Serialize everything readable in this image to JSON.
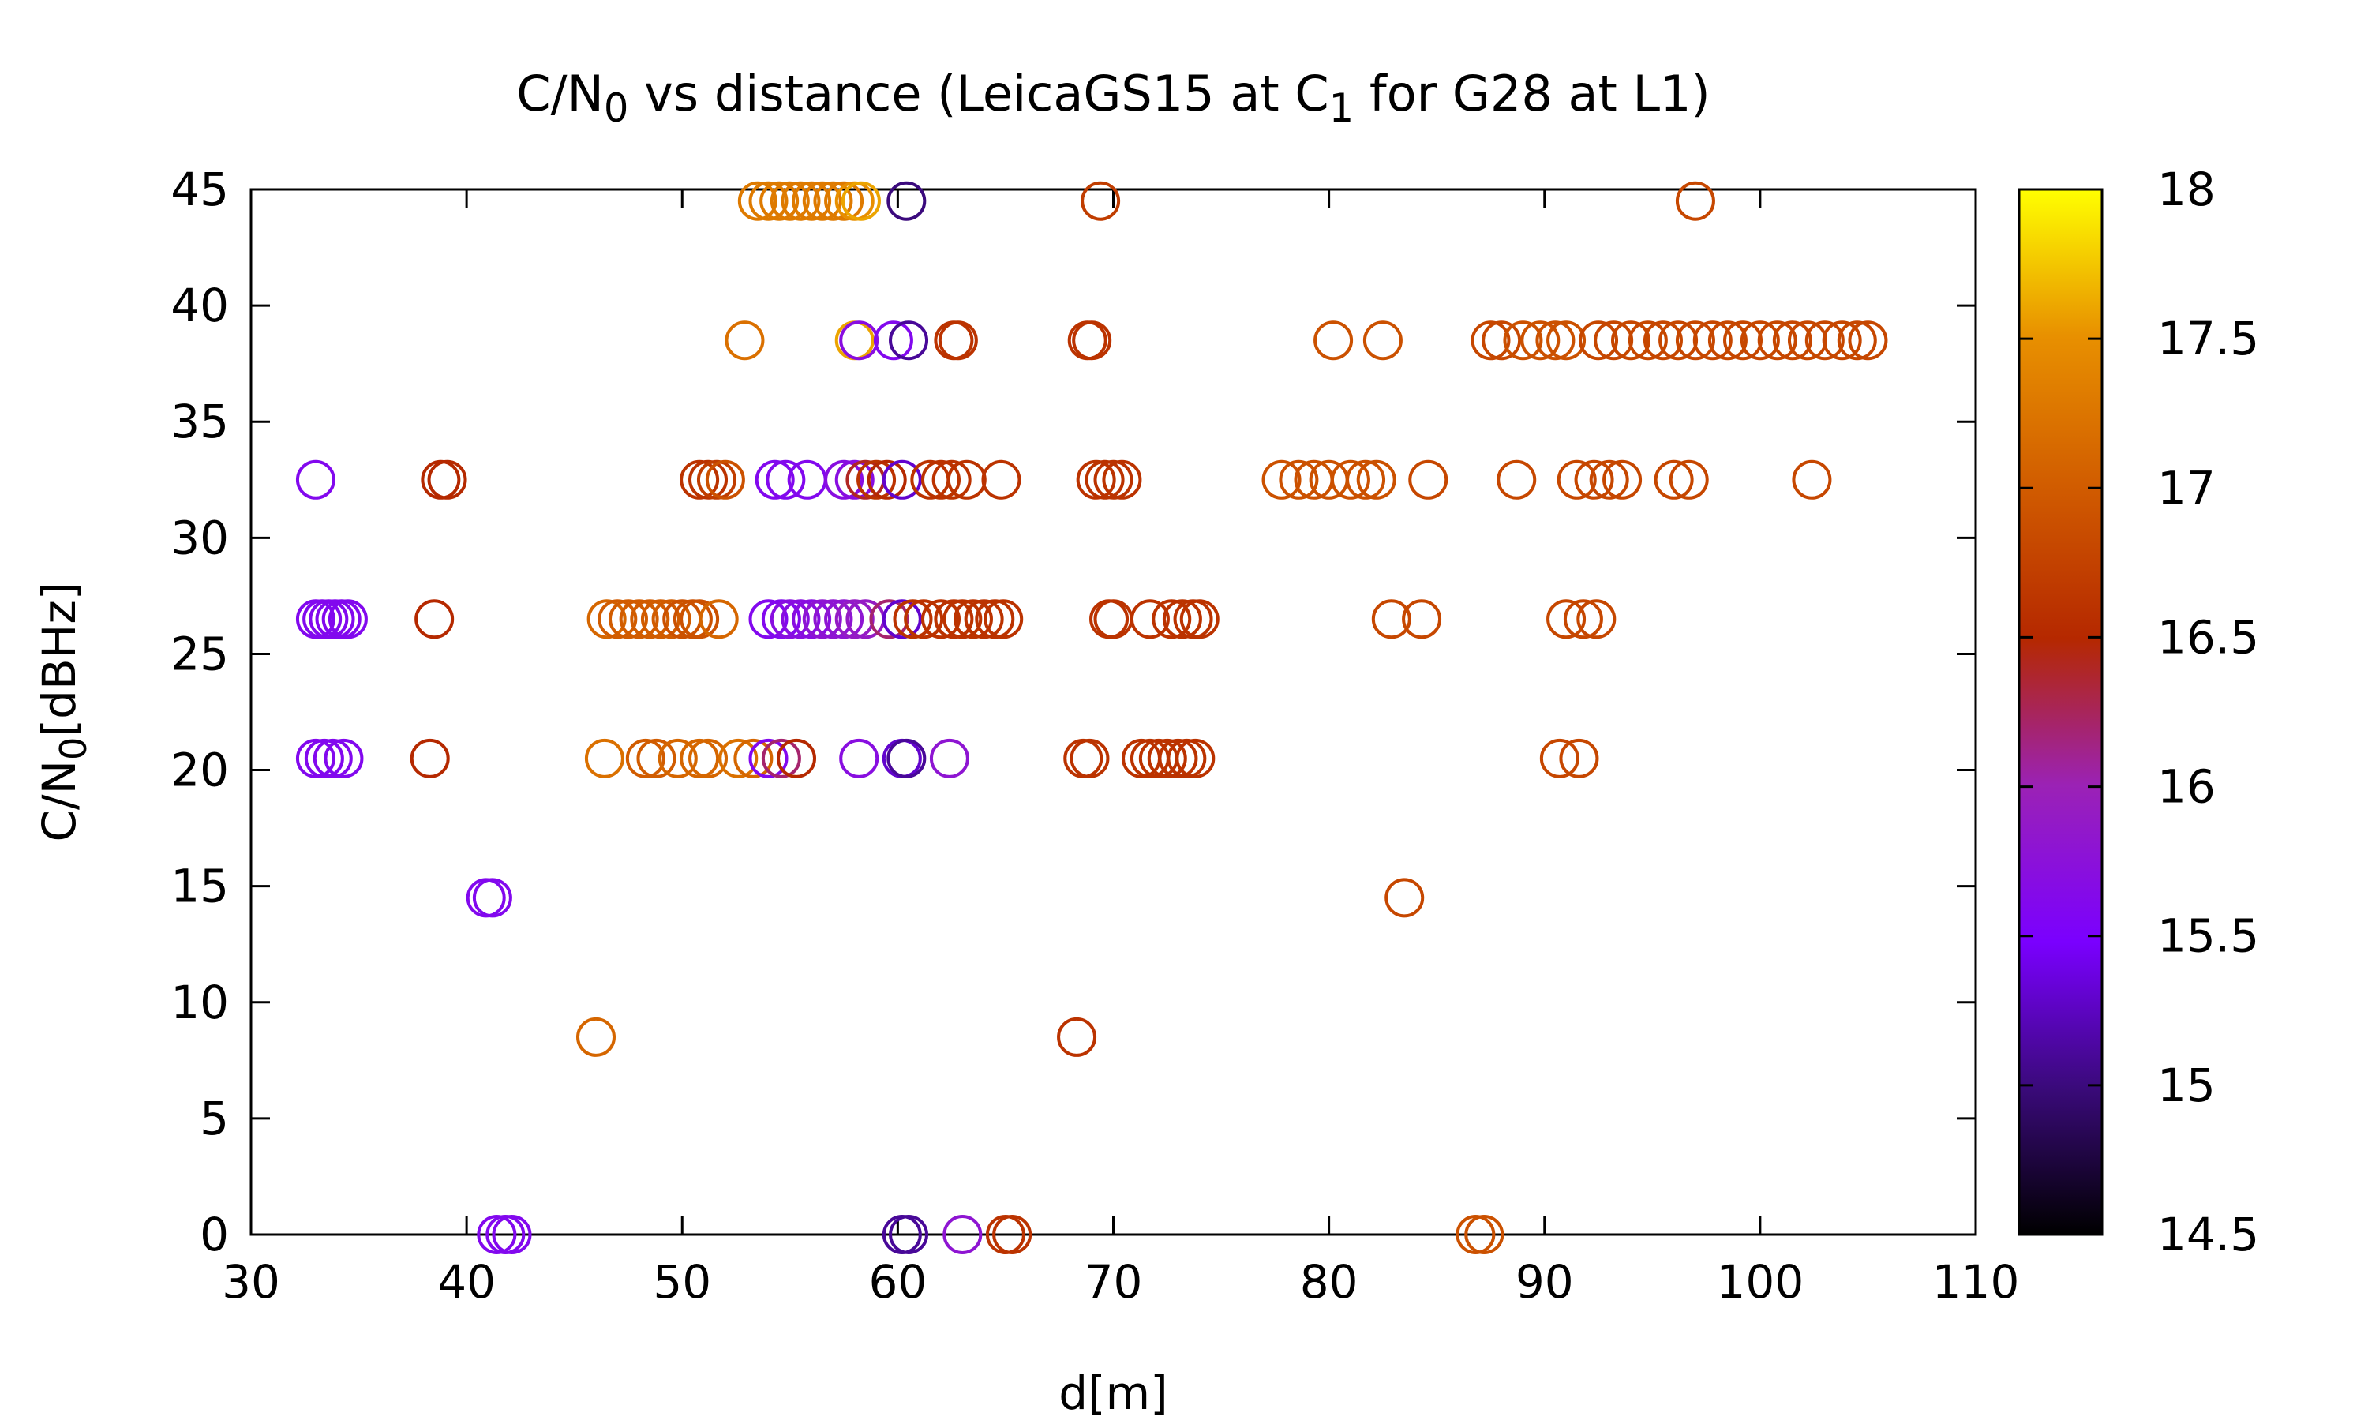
{
  "chart_data": {
    "type": "scatter",
    "title_parts": [
      {
        "t": "C/N"
      },
      {
        "t": "0",
        "sub": true
      },
      {
        "t": " vs distance (LeicaGS15 at C"
      },
      {
        "t": "1",
        "sub": true
      },
      {
        "t": " for G28 at L1)"
      }
    ],
    "title": "C/N0 vs distance (LeicaGS15 at C1 for G28 at L1)",
    "xlabel": "d[m]",
    "ylabel_parts": [
      {
        "t": "C/N"
      },
      {
        "t": "0",
        "sub": true
      },
      {
        "t": "[dBHz]"
      }
    ],
    "ylabel": "C/N0[dBHz]",
    "xlim": [
      30,
      110
    ],
    "ylim": [
      0,
      45
    ],
    "xticks": [
      "30",
      "40",
      "50",
      "60",
      "70",
      "80",
      "90",
      "100",
      "110"
    ],
    "yticks": [
      "0",
      "5",
      "10",
      "15",
      "20",
      "25",
      "30",
      "35",
      "40",
      "45"
    ],
    "color_range": [
      14.5,
      18
    ],
    "colorbar_ticks": [
      "14.5",
      "15",
      "15.5",
      "16",
      "16.5",
      "17",
      "17.5",
      "18"
    ],
    "colormap": "gnuplot (black-purple-red-orange-yellow)",
    "marker": "open-circle",
    "grid": false,
    "points": [
      [
        53.5,
        44.5,
        17.3
      ],
      [
        54.0,
        44.5,
        17.3
      ],
      [
        54.5,
        44.5,
        17.3
      ],
      [
        55.0,
        44.5,
        17.3
      ],
      [
        55.5,
        44.5,
        17.3
      ],
      [
        56.0,
        44.5,
        17.3
      ],
      [
        56.5,
        44.5,
        17.3
      ],
      [
        57.0,
        44.5,
        17.3
      ],
      [
        57.5,
        44.5,
        17.3
      ],
      [
        58.0,
        44.5,
        17.5
      ],
      [
        58.3,
        44.5,
        17.6
      ],
      [
        60.4,
        44.5,
        15.0
      ],
      [
        69.4,
        44.5,
        16.7
      ],
      [
        97.0,
        44.5,
        16.8
      ],
      [
        52.9,
        38.5,
        17.2
      ],
      [
        58.0,
        38.5,
        17.6
      ],
      [
        58.2,
        38.5,
        15.7
      ],
      [
        59.8,
        38.5,
        15.6
      ],
      [
        60.5,
        38.5,
        15.1
      ],
      [
        62.6,
        38.5,
        16.6
      ],
      [
        62.8,
        38.5,
        16.6
      ],
      [
        68.8,
        38.5,
        16.6
      ],
      [
        69.0,
        38.5,
        16.6
      ],
      [
        80.2,
        38.5,
        16.9
      ],
      [
        82.5,
        38.5,
        16.9
      ],
      [
        87.5,
        38.5,
        16.8
      ],
      [
        88.0,
        38.5,
        16.8
      ],
      [
        89.0,
        38.5,
        16.9
      ],
      [
        89.8,
        38.5,
        16.9
      ],
      [
        90.5,
        38.5,
        16.9
      ],
      [
        91.0,
        38.5,
        16.9
      ],
      [
        92.5,
        38.5,
        16.8
      ],
      [
        93.2,
        38.5,
        16.8
      ],
      [
        94.0,
        38.5,
        16.8
      ],
      [
        94.8,
        38.5,
        16.8
      ],
      [
        95.5,
        38.5,
        16.8
      ],
      [
        96.2,
        38.5,
        16.8
      ],
      [
        97.0,
        38.5,
        16.8
      ],
      [
        97.8,
        38.5,
        16.8
      ],
      [
        98.5,
        38.5,
        16.8
      ],
      [
        99.2,
        38.5,
        16.8
      ],
      [
        100.0,
        38.5,
        16.8
      ],
      [
        100.8,
        38.5,
        16.8
      ],
      [
        101.5,
        38.5,
        16.8
      ],
      [
        102.2,
        38.5,
        16.8
      ],
      [
        103.0,
        38.5,
        16.8
      ],
      [
        103.8,
        38.5,
        16.8
      ],
      [
        104.5,
        38.5,
        16.8
      ],
      [
        105.0,
        38.5,
        16.8
      ],
      [
        33.0,
        32.5,
        15.6
      ],
      [
        38.8,
        32.5,
        16.5
      ],
      [
        39.1,
        32.5,
        16.5
      ],
      [
        50.8,
        32.5,
        16.6
      ],
      [
        51.2,
        32.5,
        16.6
      ],
      [
        51.6,
        32.5,
        16.7
      ],
      [
        52.0,
        32.5,
        16.9
      ],
      [
        54.3,
        32.5,
        15.6
      ],
      [
        54.8,
        32.5,
        15.6
      ],
      [
        55.8,
        32.5,
        15.6
      ],
      [
        57.5,
        32.5,
        15.7
      ],
      [
        58.0,
        32.5,
        15.7
      ],
      [
        58.5,
        32.5,
        16.4
      ],
      [
        59.0,
        32.5,
        16.6
      ],
      [
        59.5,
        32.5,
        16.5
      ],
      [
        60.2,
        32.5,
        15.3
      ],
      [
        61.5,
        32.5,
        16.6
      ],
      [
        62.0,
        32.5,
        16.6
      ],
      [
        62.5,
        32.5,
        16.6
      ],
      [
        63.2,
        32.5,
        16.6
      ],
      [
        64.8,
        32.5,
        16.6
      ],
      [
        69.2,
        32.5,
        16.6
      ],
      [
        69.6,
        32.5,
        16.6
      ],
      [
        70.0,
        32.5,
        16.6
      ],
      [
        70.4,
        32.5,
        16.6
      ],
      [
        77.8,
        32.5,
        16.9
      ],
      [
        78.6,
        32.5,
        16.9
      ],
      [
        79.3,
        32.5,
        16.9
      ],
      [
        80.0,
        32.5,
        16.9
      ],
      [
        81.0,
        32.5,
        16.9
      ],
      [
        81.7,
        32.5,
        16.9
      ],
      [
        82.2,
        32.5,
        16.9
      ],
      [
        84.6,
        32.5,
        16.8
      ],
      [
        88.7,
        32.5,
        16.8
      ],
      [
        91.5,
        32.5,
        16.8
      ],
      [
        92.3,
        32.5,
        16.8
      ],
      [
        93.0,
        32.5,
        16.8
      ],
      [
        93.6,
        32.5,
        16.8
      ],
      [
        96.0,
        32.5,
        16.8
      ],
      [
        96.7,
        32.5,
        16.8
      ],
      [
        102.4,
        32.5,
        16.8
      ],
      [
        33.0,
        26.5,
        15.6
      ],
      [
        33.3,
        26.5,
        15.6
      ],
      [
        33.6,
        26.5,
        15.6
      ],
      [
        33.9,
        26.5,
        15.6
      ],
      [
        34.2,
        26.5,
        15.6
      ],
      [
        34.5,
        26.5,
        15.6
      ],
      [
        38.5,
        26.5,
        16.5
      ],
      [
        46.5,
        26.5,
        17.1
      ],
      [
        47.0,
        26.5,
        17.0
      ],
      [
        47.5,
        26.5,
        17.0
      ],
      [
        48.0,
        26.5,
        17.0
      ],
      [
        48.5,
        26.5,
        17.0
      ],
      [
        49.0,
        26.5,
        17.0
      ],
      [
        49.5,
        26.5,
        17.0
      ],
      [
        50.0,
        26.5,
        16.9
      ],
      [
        50.5,
        26.5,
        16.9
      ],
      [
        50.8,
        26.5,
        16.9
      ],
      [
        51.7,
        26.5,
        17.1
      ],
      [
        54.0,
        26.5,
        15.6
      ],
      [
        54.6,
        26.5,
        15.6
      ],
      [
        55.0,
        26.5,
        15.7
      ],
      [
        55.5,
        26.5,
        15.7
      ],
      [
        56.0,
        26.5,
        15.7
      ],
      [
        56.5,
        26.5,
        15.8
      ],
      [
        57.0,
        26.5,
        15.8
      ],
      [
        57.5,
        26.5,
        15.8
      ],
      [
        58.0,
        26.5,
        15.9
      ],
      [
        58.5,
        26.5,
        15.9
      ],
      [
        59.6,
        26.5,
        16.2
      ],
      [
        60.2,
        26.5,
        15.3
      ],
      [
        60.7,
        26.5,
        16.6
      ],
      [
        61.2,
        26.5,
        16.6
      ],
      [
        62.0,
        26.5,
        16.6
      ],
      [
        62.6,
        26.5,
        16.6
      ],
      [
        63.0,
        26.5,
        16.6
      ],
      [
        63.5,
        26.5,
        16.6
      ],
      [
        64.0,
        26.5,
        16.6
      ],
      [
        64.5,
        26.5,
        16.6
      ],
      [
        64.9,
        26.5,
        16.6
      ],
      [
        69.8,
        26.5,
        16.6
      ],
      [
        70.0,
        26.5,
        16.6
      ],
      [
        71.7,
        26.5,
        16.6
      ],
      [
        72.7,
        26.5,
        16.6
      ],
      [
        73.2,
        26.5,
        16.6
      ],
      [
        73.7,
        26.5,
        16.6
      ],
      [
        74.0,
        26.5,
        16.6
      ],
      [
        82.9,
        26.5,
        16.8
      ],
      [
        84.3,
        26.5,
        16.8
      ],
      [
        91.0,
        26.5,
        16.8
      ],
      [
        91.8,
        26.5,
        16.8
      ],
      [
        92.4,
        26.5,
        16.8
      ],
      [
        33.0,
        20.5,
        15.6
      ],
      [
        33.4,
        20.5,
        15.6
      ],
      [
        33.8,
        20.5,
        15.6
      ],
      [
        34.3,
        20.5,
        15.6
      ],
      [
        38.3,
        20.5,
        16.5
      ],
      [
        46.4,
        20.5,
        17.2
      ],
      [
        48.3,
        20.5,
        17.0
      ],
      [
        48.8,
        20.5,
        17.0
      ],
      [
        49.8,
        20.5,
        17.1
      ],
      [
        50.8,
        20.5,
        17.1
      ],
      [
        51.2,
        20.5,
        17.1
      ],
      [
        52.6,
        20.5,
        17.2
      ],
      [
        53.3,
        20.5,
        17.1
      ],
      [
        54.0,
        20.5,
        15.6
      ],
      [
        54.6,
        20.5,
        16.2
      ],
      [
        55.3,
        20.5,
        16.5
      ],
      [
        58.2,
        20.5,
        15.7
      ],
      [
        60.2,
        20.5,
        15.3
      ],
      [
        60.4,
        20.5,
        15.1
      ],
      [
        62.4,
        20.5,
        15.8
      ],
      [
        68.6,
        20.5,
        16.6
      ],
      [
        68.9,
        20.5,
        16.6
      ],
      [
        71.3,
        20.5,
        16.6
      ],
      [
        71.7,
        20.5,
        16.6
      ],
      [
        72.1,
        20.5,
        16.6
      ],
      [
        72.5,
        20.5,
        16.6
      ],
      [
        73.0,
        20.5,
        16.6
      ],
      [
        73.4,
        20.5,
        16.6
      ],
      [
        73.8,
        20.5,
        16.6
      ],
      [
        90.7,
        20.5,
        16.8
      ],
      [
        91.6,
        20.5,
        16.8
      ],
      [
        40.9,
        14.5,
        15.6
      ],
      [
        41.2,
        14.5,
        15.6
      ],
      [
        83.5,
        14.5,
        16.8
      ],
      [
        46.0,
        8.5,
        17.1
      ],
      [
        68.3,
        8.5,
        16.6
      ],
      [
        41.4,
        0.0,
        15.6
      ],
      [
        41.8,
        0.0,
        15.6
      ],
      [
        42.1,
        0.0,
        15.6
      ],
      [
        60.2,
        0.0,
        15.1
      ],
      [
        60.5,
        0.0,
        15.1
      ],
      [
        63.0,
        0.0,
        15.8
      ],
      [
        65.0,
        0.0,
        16.6
      ],
      [
        65.3,
        0.0,
        16.6
      ],
      [
        86.8,
        0.0,
        16.9
      ],
      [
        87.2,
        0.0,
        16.9
      ]
    ]
  }
}
